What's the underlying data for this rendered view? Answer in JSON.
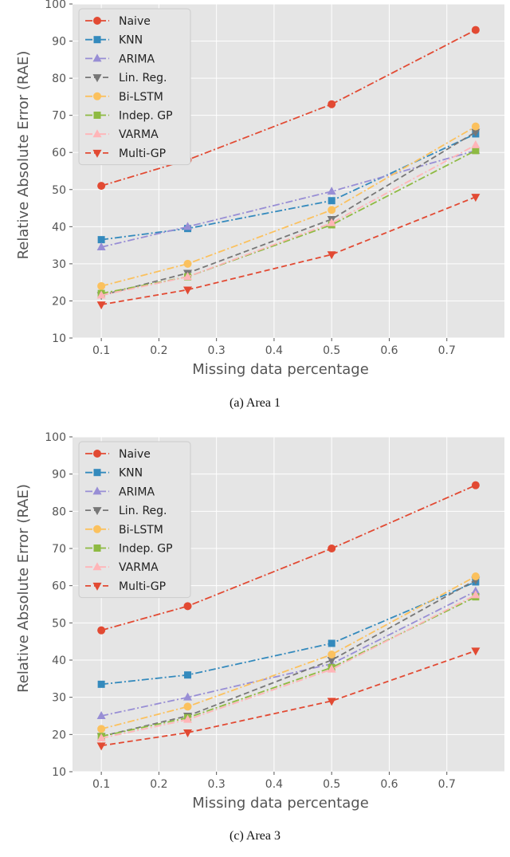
{
  "chart_data": [
    {
      "type": "line",
      "caption": "(a) Area 1",
      "xlabel": "Missing data percentage",
      "ylabel": "Relative Absolute Error (RAE)",
      "x": [
        0.1,
        0.25,
        0.5,
        0.75
      ],
      "xlim": [
        0.05,
        0.8
      ],
      "ylim": [
        10,
        100
      ],
      "xticks": [
        "0.1",
        "0.2",
        "0.3",
        "0.4",
        "0.5",
        "0.6",
        "0.7"
      ],
      "yticks": [
        "10",
        "20",
        "30",
        "40",
        "50",
        "60",
        "70",
        "80",
        "90",
        "100"
      ],
      "grid": true,
      "legend_position": "top-left",
      "series": [
        {
          "name": "Naive",
          "values": [
            51,
            58,
            73,
            93
          ],
          "color": "#E24A33",
          "marker": "circle",
          "dash": "dashdot"
        },
        {
          "name": "KNN",
          "values": [
            36.5,
            39.5,
            47,
            65
          ],
          "color": "#348ABD",
          "marker": "square",
          "dash": "dashdot"
        },
        {
          "name": "ARIMA",
          "values": [
            34.5,
            40,
            49.5,
            60.5
          ],
          "color": "#988ED5",
          "marker": "triangle-up",
          "dash": "dashdot"
        },
        {
          "name": "Lin. Reg.",
          "values": [
            21.5,
            27.5,
            42,
            65.5
          ],
          "color": "#777777",
          "marker": "triangle-down",
          "dash": "dashed"
        },
        {
          "name": "Bi-LSTM",
          "values": [
            24,
            30,
            44.5,
            67
          ],
          "color": "#FBC15E",
          "marker": "circle",
          "dash": "dashdot"
        },
        {
          "name": "Indep. GP",
          "values": [
            22,
            26.5,
            40.5,
            60.5
          ],
          "color": "#8EBA42",
          "marker": "square",
          "dash": "dashdot"
        },
        {
          "name": "VARMA",
          "values": [
            21.5,
            26.5,
            41,
            62
          ],
          "color": "#FFB5B8",
          "marker": "triangle-up",
          "dash": "dashdot"
        },
        {
          "name": "Multi-GP",
          "values": [
            19,
            23,
            32.5,
            48
          ],
          "color": "#E24A33",
          "marker": "triangle-down",
          "dash": "dashed"
        }
      ]
    },
    {
      "type": "line",
      "caption": "(c) Area 3",
      "xlabel": "Missing data percentage",
      "ylabel": "Relative Absolute Error (RAE)",
      "x": [
        0.1,
        0.25,
        0.5,
        0.75
      ],
      "xlim": [
        0.05,
        0.8
      ],
      "ylim": [
        10,
        100
      ],
      "xticks": [
        "0.1",
        "0.2",
        "0.3",
        "0.4",
        "0.5",
        "0.6",
        "0.7"
      ],
      "yticks": [
        "10",
        "20",
        "30",
        "40",
        "50",
        "60",
        "70",
        "80",
        "90",
        "100"
      ],
      "grid": true,
      "legend_position": "top-left",
      "series": [
        {
          "name": "Naive",
          "values": [
            48,
            54.5,
            70,
            87
          ],
          "color": "#E24A33",
          "marker": "circle",
          "dash": "dashdot"
        },
        {
          "name": "KNN",
          "values": [
            33.5,
            36,
            44.5,
            61
          ],
          "color": "#348ABD",
          "marker": "square",
          "dash": "dashdot"
        },
        {
          "name": "ARIMA",
          "values": [
            25,
            30,
            39,
            58.5
          ],
          "color": "#988ED5",
          "marker": "triangle-up",
          "dash": "dashdot"
        },
        {
          "name": "Lin. Reg.",
          "values": [
            19.5,
            25,
            40,
            61.5
          ],
          "color": "#777777",
          "marker": "triangle-down",
          "dash": "dashed"
        },
        {
          "name": "Bi-LSTM",
          "values": [
            21.5,
            27.5,
            41.5,
            62.5
          ],
          "color": "#FBC15E",
          "marker": "circle",
          "dash": "dashdot"
        },
        {
          "name": "Indep. GP",
          "values": [
            19.5,
            24.5,
            38,
            57
          ],
          "color": "#8EBA42",
          "marker": "square",
          "dash": "dashdot"
        },
        {
          "name": "VARMA",
          "values": [
            19,
            24,
            37.5,
            57.5
          ],
          "color": "#FFB5B8",
          "marker": "triangle-up",
          "dash": "dashdot"
        },
        {
          "name": "Multi-GP",
          "values": [
            17,
            20.5,
            29,
            42.5
          ],
          "color": "#E24A33",
          "marker": "triangle-down",
          "dash": "dashed"
        }
      ]
    }
  ]
}
